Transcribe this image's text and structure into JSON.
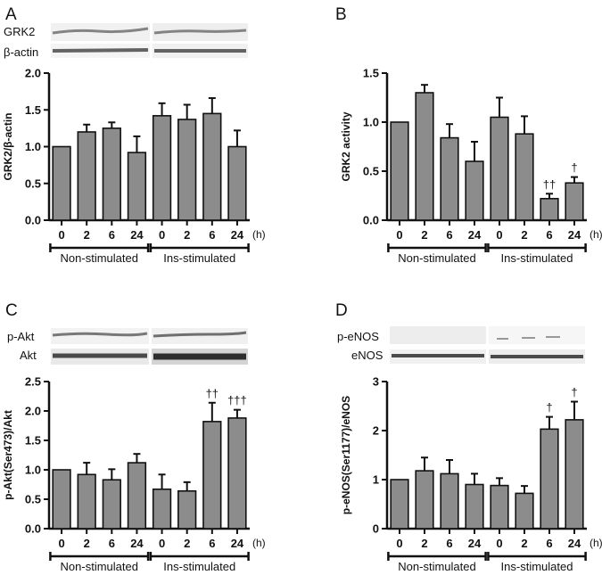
{
  "colors": {
    "bar": "#8c8c8c",
    "axis": "#111111",
    "background": "#ffffff",
    "blot_bg": "#f2f2f2",
    "blot_band": "#2a2a2a"
  },
  "groups": [
    "Non-stimulated",
    "Ins-stimulated"
  ],
  "time_unit": "(h)",
  "panels": [
    {
      "letter": "A",
      "blots": [
        {
          "label": "GRK2"
        },
        {
          "label": "β-actin"
        }
      ]
    },
    {
      "letter": "B",
      "blots": []
    },
    {
      "letter": "C",
      "blots": [
        {
          "label": "p-Akt"
        },
        {
          "label": "Akt"
        }
      ]
    },
    {
      "letter": "D",
      "blots": [
        {
          "label": "p-eNOS"
        },
        {
          "label": "eNOS"
        }
      ]
    }
  ],
  "chart_data": [
    {
      "panel": "A",
      "type": "bar",
      "ylabel": "GRK2/β-actin",
      "xlabel": "(h)",
      "ylim": [
        0,
        2.0
      ],
      "yticks": [
        "0.0",
        "0.5",
        "1.0",
        "1.5",
        "2.0"
      ],
      "yticks_values": [
        0,
        0.5,
        1.0,
        1.5,
        2.0
      ],
      "categories": [
        "0",
        "2",
        "6",
        "24",
        "0",
        "2",
        "6",
        "24"
      ],
      "groups": [
        "Non-stimulated",
        "Ins-stimulated"
      ],
      "values": [
        1.0,
        1.2,
        1.25,
        0.92,
        1.42,
        1.37,
        1.45,
        1.0
      ],
      "errors": [
        0,
        0.1,
        0.08,
        0.22,
        0.17,
        0.2,
        0.21,
        0.22
      ],
      "significance": [
        "",
        "",
        "",
        "",
        "",
        "",
        "",
        ""
      ]
    },
    {
      "panel": "B",
      "type": "bar",
      "ylabel": "GRK2 activity",
      "xlabel": "(h)",
      "ylim": [
        0,
        1.5
      ],
      "yticks": [
        "0.0",
        "0.5",
        "1.0",
        "1.5"
      ],
      "yticks_values": [
        0,
        0.5,
        1.0,
        1.5
      ],
      "categories": [
        "0",
        "2",
        "6",
        "24",
        "0",
        "2",
        "6",
        "24"
      ],
      "groups": [
        "Non-stimulated",
        "Ins-stimulated"
      ],
      "values": [
        1.0,
        1.3,
        0.84,
        0.6,
        1.05,
        0.88,
        0.22,
        0.38
      ],
      "errors": [
        0,
        0.08,
        0.14,
        0.2,
        0.2,
        0.18,
        0.05,
        0.06
      ],
      "significance": [
        "",
        "",
        "",
        "",
        "",
        "",
        "††",
        "†"
      ]
    },
    {
      "panel": "C",
      "type": "bar",
      "ylabel": "p-Akt(Ser473)/Akt",
      "xlabel": "(h)",
      "ylim": [
        0,
        2.5
      ],
      "yticks": [
        "0.0",
        "0.5",
        "1.0",
        "1.5",
        "2.0",
        "2.5"
      ],
      "yticks_values": [
        0,
        0.5,
        1.0,
        1.5,
        2.0,
        2.5
      ],
      "categories": [
        "0",
        "2",
        "6",
        "24",
        "0",
        "2",
        "6",
        "24"
      ],
      "groups": [
        "Non-stimulated",
        "Ins-stimulated"
      ],
      "values": [
        1.0,
        0.92,
        0.83,
        1.12,
        0.67,
        0.64,
        1.82,
        1.88
      ],
      "errors": [
        0,
        0.2,
        0.18,
        0.15,
        0.25,
        0.15,
        0.32,
        0.14
      ],
      "significance": [
        "",
        "",
        "",
        "",
        "",
        "",
        "††",
        "†††"
      ]
    },
    {
      "panel": "D",
      "type": "bar",
      "ylabel": "p-eNOS(Ser1177)/eNOS",
      "xlabel": "(h)",
      "ylim": [
        0,
        3
      ],
      "yticks": [
        "0",
        "1",
        "2",
        "3"
      ],
      "yticks_values": [
        0,
        1,
        2,
        3
      ],
      "categories": [
        "0",
        "2",
        "6",
        "24",
        "0",
        "2",
        "6",
        "24"
      ],
      "groups": [
        "Non-stimulated",
        "Ins-stimulated"
      ],
      "values": [
        1.0,
        1.18,
        1.12,
        0.9,
        0.88,
        0.72,
        2.03,
        2.22
      ],
      "errors": [
        0,
        0.27,
        0.28,
        0.22,
        0.15,
        0.15,
        0.25,
        0.37
      ],
      "significance": [
        "",
        "",
        "",
        "",
        "",
        "",
        "†",
        "†"
      ]
    }
  ]
}
